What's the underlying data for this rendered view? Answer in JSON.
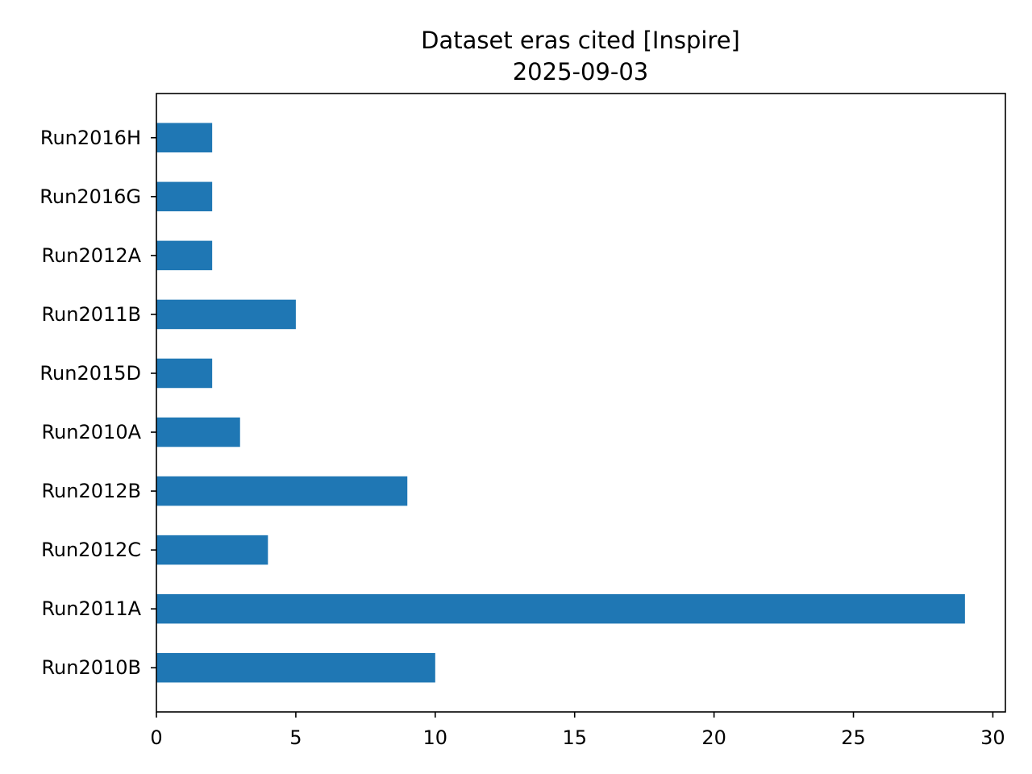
{
  "chart_data": {
    "type": "bar",
    "orientation": "horizontal",
    "title": "Dataset eras cited [Inspire]",
    "subtitle": "2025-09-03",
    "xlabel": "",
    "ylabel": "",
    "categories": [
      "Run2010B",
      "Run2011A",
      "Run2012C",
      "Run2012B",
      "Run2010A",
      "Run2015D",
      "Run2011B",
      "Run2012A",
      "Run2016G",
      "Run2016H"
    ],
    "values": [
      10,
      29,
      4,
      9,
      3,
      2,
      5,
      2,
      2,
      2
    ],
    "xlim": [
      0,
      30.45
    ],
    "xticks": [
      0,
      5,
      10,
      15,
      20,
      25,
      30
    ],
    "grid": false,
    "legend": "none",
    "bar_color": "#1f77b4"
  }
}
